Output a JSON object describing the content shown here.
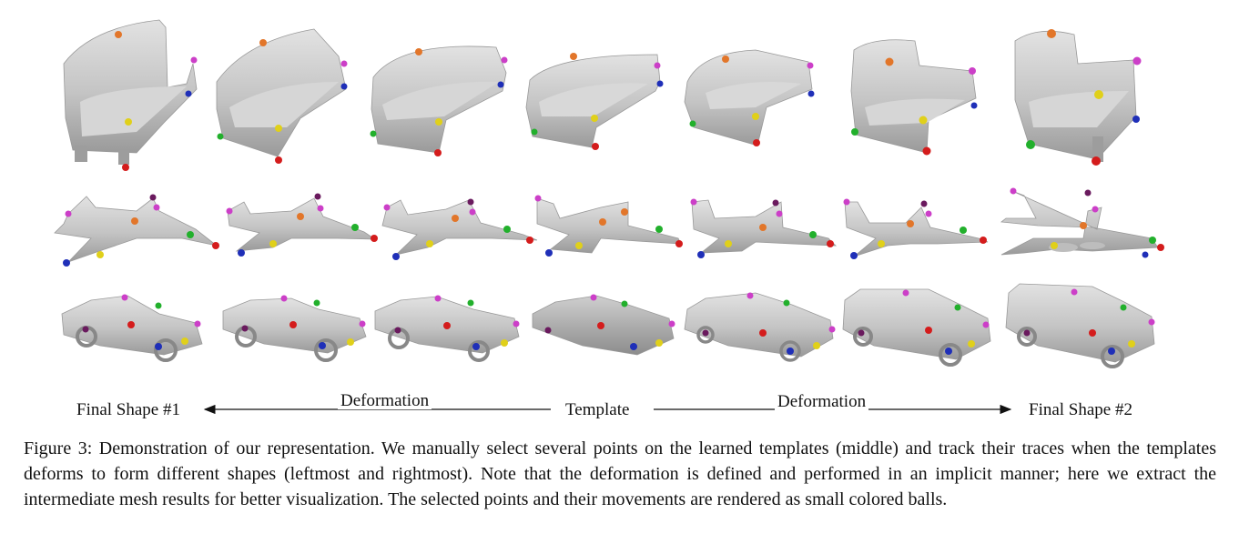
{
  "figure": {
    "axis_labels": {
      "final_left": "Final Shape #1",
      "deform_left": "Deformation",
      "template": "Template",
      "deform_right": "Deformation",
      "final_right": "Final Shape #2"
    },
    "rows": [
      "sofa",
      "airplane",
      "car"
    ],
    "marker_colors": {
      "orange": "#e2762a",
      "magenta": "#cc3fc8",
      "blue": "#1f2fb8",
      "yellow": "#e0d01a",
      "red": "#d41c1c",
      "green": "#22b02c",
      "purple": "#6a1a5e"
    },
    "mesh_color": "#c8c8c8"
  },
  "caption": {
    "text": "Figure 3: Demonstration of our representation. We manually select several points on the learned templates (middle) and track their traces when the templates deforms to form different shapes (leftmost and rightmost). Note that the deformation is defined and performed in an implicit manner; here we extract the intermediate mesh results for better visualization. The selected points and their movements are rendered as small colored balls."
  }
}
